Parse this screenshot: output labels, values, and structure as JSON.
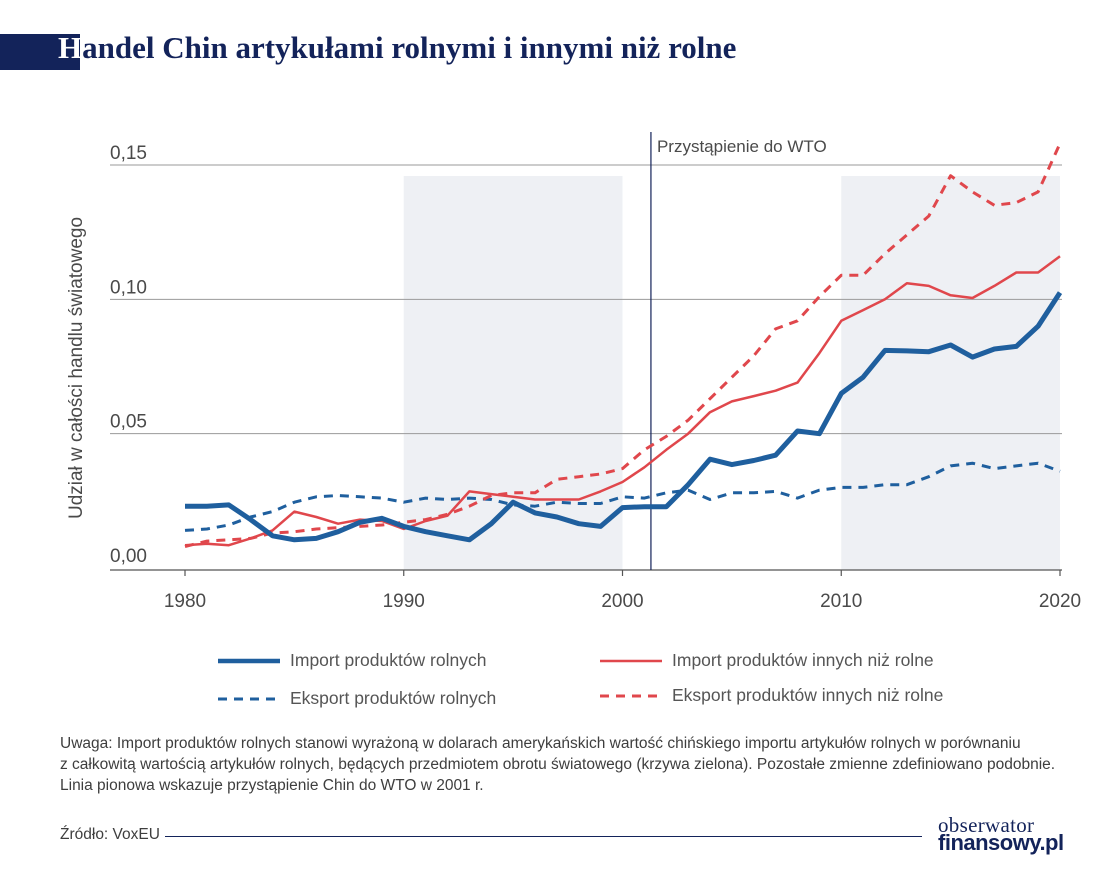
{
  "title": {
    "first_letter": "H",
    "rest": "andel Chin artykułami rolnymi i innymi niż rolne"
  },
  "chart_data": {
    "type": "line",
    "title": "Handel Chin artykułami rolnymi i innymi niż rolne",
    "xlabel": "",
    "ylabel": "Udział w całości handlu światowego",
    "xlim": [
      1980,
      2020
    ],
    "ylim": [
      0,
      0.15
    ],
    "x_ticks": [
      1980,
      1990,
      2000,
      2010,
      2020
    ],
    "x_tick_labels": [
      "1980",
      "1990",
      "2000",
      "2010",
      "2020"
    ],
    "y_ticks": [
      0,
      0.05,
      0.1,
      0.15
    ],
    "y_tick_labels": [
      "0,00",
      "0,05",
      "0,10",
      "0,15"
    ],
    "grid": "horizontal",
    "shaded_periods": [
      [
        1990,
        2000
      ],
      [
        2010,
        2020
      ]
    ],
    "vertical_line": {
      "x": 2001.3,
      "label": "Przystąpienie do WTO"
    },
    "legend_position": "bottom",
    "x": [
      1980,
      1981,
      1982,
      1983,
      1984,
      1985,
      1986,
      1987,
      1988,
      1989,
      1990,
      1991,
      1992,
      1993,
      1994,
      1995,
      1996,
      1997,
      1998,
      1999,
      2000,
      2001,
      2002,
      2003,
      2004,
      2005,
      2006,
      2007,
      2008,
      2009,
      2010,
      2011,
      2012,
      2013,
      2014,
      2015,
      2016,
      2017,
      2018,
      2019,
      2020
    ],
    "series": [
      {
        "name": "Import produktów rolnych",
        "color": "#1f5f9e",
        "style": "solid-thick",
        "values": [
          0.023,
          0.023,
          0.0235,
          0.018,
          0.012,
          0.0105,
          0.011,
          0.0135,
          0.017,
          0.0185,
          0.0155,
          0.0135,
          0.012,
          0.0105,
          0.0165,
          0.0245,
          0.0205,
          0.019,
          0.0165,
          0.0155,
          0.0225,
          0.0228,
          0.0228,
          0.031,
          0.0405,
          0.0385,
          0.04,
          0.042,
          0.051,
          0.05,
          0.065,
          0.071,
          0.081,
          0.0808,
          0.0805,
          0.083,
          0.0785,
          0.0815,
          0.0825,
          0.09,
          0.1025
        ]
      },
      {
        "name": "Eksport produktów rolnych",
        "color": "#1f5f9e",
        "style": "dashed",
        "values": [
          0.014,
          0.0145,
          0.016,
          0.019,
          0.021,
          0.0245,
          0.0265,
          0.027,
          0.0265,
          0.026,
          0.0245,
          0.026,
          0.0255,
          0.026,
          0.0255,
          0.0235,
          0.023,
          0.0245,
          0.024,
          0.024,
          0.0265,
          0.026,
          0.028,
          0.029,
          0.0255,
          0.028,
          0.028,
          0.0285,
          0.026,
          0.029,
          0.03,
          0.03,
          0.031,
          0.031,
          0.034,
          0.038,
          0.039,
          0.037,
          0.038,
          0.039,
          0.036
        ]
      },
      {
        "name": "Import produktów innych niż rolne",
        "color": "#e0474c",
        "style": "solid",
        "values": [
          0.0085,
          0.009,
          0.0085,
          0.011,
          0.014,
          0.021,
          0.019,
          0.0165,
          0.018,
          0.0175,
          0.0145,
          0.0175,
          0.0195,
          0.0285,
          0.0275,
          0.0265,
          0.0255,
          0.0255,
          0.0255,
          0.0285,
          0.032,
          0.0375,
          0.044,
          0.05,
          0.058,
          0.062,
          0.064,
          0.066,
          0.069,
          0.08,
          0.092,
          0.096,
          0.1,
          0.106,
          0.105,
          0.1015,
          0.1005,
          0.105,
          0.11,
          0.11,
          0.116
        ]
      },
      {
        "name": "Eksport produktów innych niż rolne",
        "color": "#e0474c",
        "style": "dashed",
        "values": [
          0.008,
          0.01,
          0.0105,
          0.011,
          0.013,
          0.0135,
          0.0145,
          0.015,
          0.0155,
          0.016,
          0.017,
          0.018,
          0.02,
          0.023,
          0.027,
          0.028,
          0.028,
          0.033,
          0.034,
          0.035,
          0.037,
          0.044,
          0.049,
          0.055,
          0.063,
          0.071,
          0.079,
          0.089,
          0.092,
          0.101,
          0.109,
          0.109,
          0.117,
          0.124,
          0.131,
          0.146,
          0.14,
          0.135,
          0.136,
          0.14,
          0.158
        ]
      }
    ]
  },
  "note": {
    "line1": "Uwaga: Import produktów rolnych stanowi wyrażoną w dolarach amerykańskich wartość chińskiego importu artykułów rolnych w porównaniu",
    "line2": "z całkowitą wartością artykułów rolnych, będących przedmiotem obrotu światowego (krzywa zielona). Pozostałe zmienne zdefiniowano podobnie.",
    "line3": "Linia pionowa wskazuje przystąpienie Chin do WTO w 2001 r."
  },
  "source": "Źródło: VoxEU",
  "logo": {
    "line1": "obserwator",
    "line2": "finansowy.pl"
  }
}
